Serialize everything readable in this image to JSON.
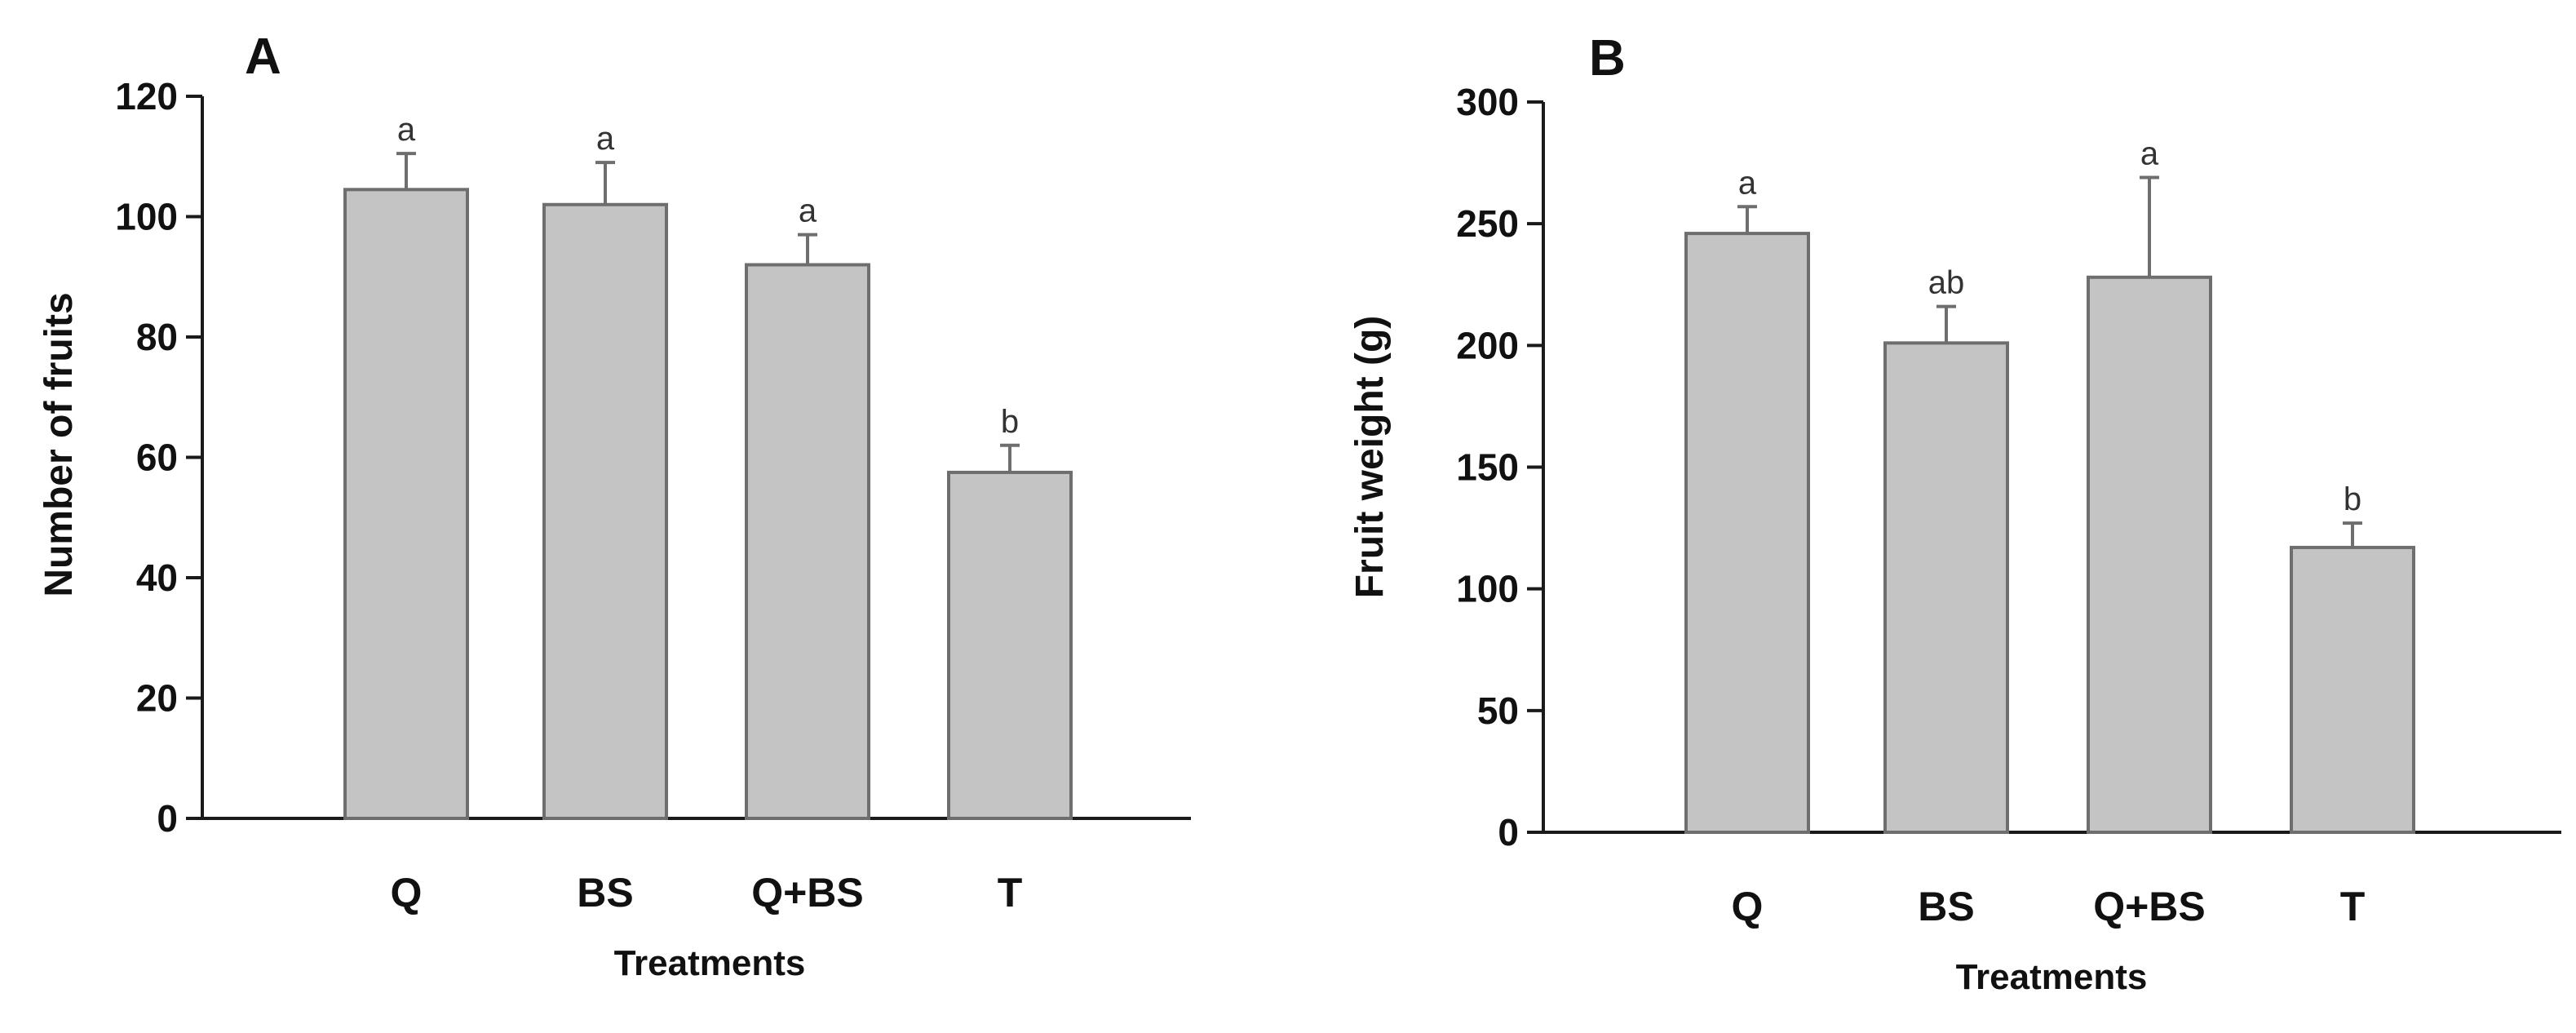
{
  "chart_data": [
    {
      "type": "bar",
      "panel_label": "A",
      "title": "",
      "xlabel": "Treatments",
      "ylabel": "Number of fruits",
      "categories": [
        "Q",
        "BS",
        "Q+BS",
        "T"
      ],
      "values": [
        104.5,
        102,
        92,
        57.5
      ],
      "errors": [
        6,
        7,
        5,
        4.5
      ],
      "letters": [
        "a",
        "a",
        "a",
        "b"
      ],
      "ylim": [
        0,
        120
      ],
      "yticks": [
        0,
        20,
        40,
        60,
        80,
        100,
        120
      ],
      "grid": false,
      "legend": false
    },
    {
      "type": "bar",
      "panel_label": "B",
      "title": "",
      "xlabel": "Treatments",
      "ylabel": "Fruit weight (g)",
      "categories": [
        "Q",
        "BS",
        "Q+BS",
        "T"
      ],
      "values": [
        246,
        201,
        228,
        117
      ],
      "errors": [
        11,
        15,
        41,
        10
      ],
      "letters": [
        "a",
        "ab",
        "a",
        "b"
      ],
      "ylim": [
        0,
        300
      ],
      "yticks": [
        0,
        50,
        100,
        150,
        200,
        250,
        300
      ],
      "grid": false,
      "legend": false
    }
  ],
  "colors": {
    "bar_fill": "#c4c4c4",
    "bar_stroke": "#6e6e6e",
    "axis": "#1a1a1a",
    "error_bar": "#6e6e6e",
    "text": "#111111",
    "letter": "#333333"
  }
}
